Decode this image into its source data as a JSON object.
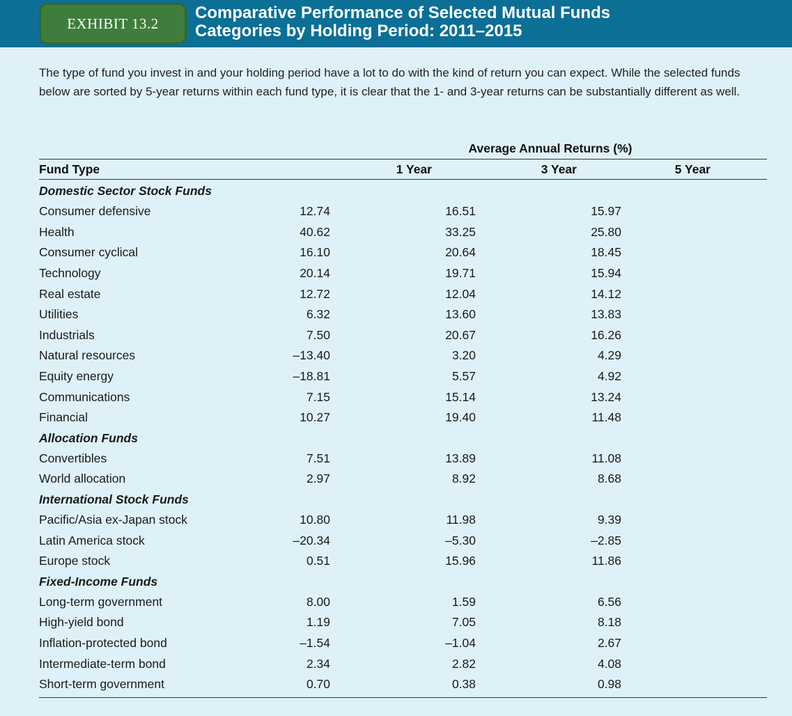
{
  "header": {
    "badge": "EXHIBIT 13.2",
    "title_line1": "Comparative Performance of Selected Mutual Funds",
    "title_line2": "Categories by Holding Period: 2011–2015"
  },
  "intro": "The type of fund you invest in and your holding period have a lot to do with the kind of return you can expect. While the selected funds below are sorted by 5-year returns within each fund type, it is clear that the 1- and 3-year returns can be substantially different as well.",
  "table": {
    "group_header": "Average Annual Returns (%)",
    "columns": [
      "Fund Type",
      "1 Year",
      "3 Year",
      "5 Year"
    ],
    "rows": [
      {
        "section": "Domestic Sector Stock Funds"
      },
      {
        "name": "Consumer defensive",
        "y1": "12.74",
        "y3": "16.51",
        "y5": "15.97"
      },
      {
        "name": "Health",
        "y1": "40.62",
        "y3": "33.25",
        "y5": "25.80"
      },
      {
        "name": "Consumer cyclical",
        "y1": "16.10",
        "y3": "20.64",
        "y5": "18.45"
      },
      {
        "name": "Technology",
        "y1": "20.14",
        "y3": "19.71",
        "y5": "15.94"
      },
      {
        "name": "Real estate",
        "y1": "12.72",
        "y3": "12.04",
        "y5": "14.12"
      },
      {
        "name": "Utilities",
        "y1": "6.32",
        "y3": "13.60",
        "y5": "13.83"
      },
      {
        "name": "Industrials",
        "y1": "7.50",
        "y3": "20.67",
        "y5": "16.26"
      },
      {
        "name": "Natural resources",
        "y1": "–13.40",
        "y3": "3.20",
        "y5": "4.29"
      },
      {
        "name": "Equity energy",
        "y1": "–18.81",
        "y3": "5.57",
        "y5": "4.92"
      },
      {
        "name": "Communications",
        "y1": "7.15",
        "y3": "15.14",
        "y5": "13.24"
      },
      {
        "name": "Financial",
        "y1": "10.27",
        "y3": "19.40",
        "y5": "11.48"
      },
      {
        "section": "Allocation Funds"
      },
      {
        "name": "Convertibles",
        "y1": "7.51",
        "y3": "13.89",
        "y5": "11.08"
      },
      {
        "name": "World allocation",
        "y1": "2.97",
        "y3": "8.92",
        "y5": "8.68"
      },
      {
        "section": "International Stock Funds"
      },
      {
        "name": "Pacific/Asia ex-Japan stock",
        "y1": "10.80",
        "y3": "11.98",
        "y5": "9.39"
      },
      {
        "name": "Latin America stock",
        "y1": "–20.34",
        "y3": "–5.30",
        "y5": "–2.85"
      },
      {
        "name": "Europe stock",
        "y1": "0.51",
        "y3": "15.96",
        "y5": "11.86"
      },
      {
        "section": "Fixed-Income Funds"
      },
      {
        "name": "Long-term government",
        "y1": "8.00",
        "y3": "1.59",
        "y5": "6.56"
      },
      {
        "name": "High-yield bond",
        "y1": "1.19",
        "y3": "7.05",
        "y5": "8.18"
      },
      {
        "name": "Inflation-protected bond",
        "y1": "–1.54",
        "y3": "–1.04",
        "y5": "2.67"
      },
      {
        "name": "Intermediate-term bond",
        "y1": "2.34",
        "y3": "2.82",
        "y5": "4.08"
      },
      {
        "name": "Short-term government",
        "y1": "0.70",
        "y3": "0.38",
        "y5": "0.98"
      }
    ]
  },
  "colors": {
    "header_bg": "#0c6f96",
    "badge_bg": "#3f7d3c",
    "page_bg": "#dff1f8"
  }
}
